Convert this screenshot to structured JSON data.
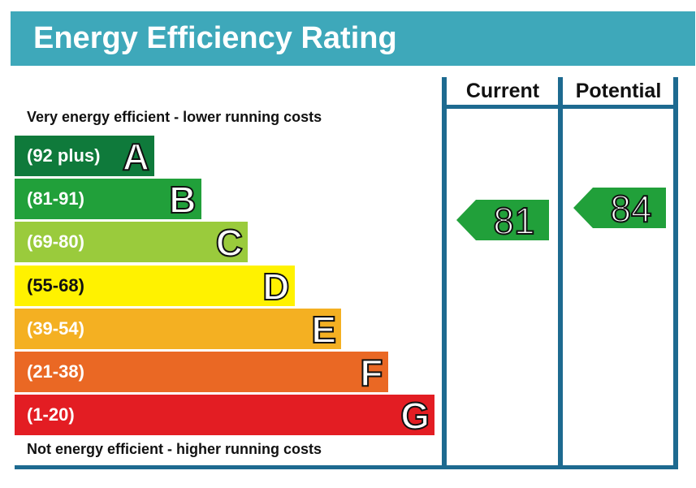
{
  "title": "Energy Efficiency Rating",
  "columns": {
    "current": "Current",
    "potential": "Potential"
  },
  "captions": {
    "top": "Very energy efficient - lower running costs",
    "bottom": "Not energy efficient - higher running costs"
  },
  "chart_data": {
    "type": "bar",
    "bands": [
      {
        "letter": "A",
        "range": "(92 plus)",
        "color": "#0f7a3b"
      },
      {
        "letter": "B",
        "range": "(81-91)",
        "color": "#21a03a"
      },
      {
        "letter": "C",
        "range": "(69-80)",
        "color": "#9acb3c"
      },
      {
        "letter": "D",
        "range": "(55-68)",
        "color": "#fff200"
      },
      {
        "letter": "E",
        "range": "(39-54)",
        "color": "#f4b022"
      },
      {
        "letter": "F",
        "range": "(21-38)",
        "color": "#ea6824"
      },
      {
        "letter": "G",
        "range": "(1-20)",
        "color": "#e31d23"
      }
    ],
    "ratings": {
      "current": {
        "value": "81",
        "band": "B",
        "color": "#21a03a"
      },
      "potential": {
        "value": "84",
        "band": "B",
        "color": "#21a03a"
      }
    }
  }
}
